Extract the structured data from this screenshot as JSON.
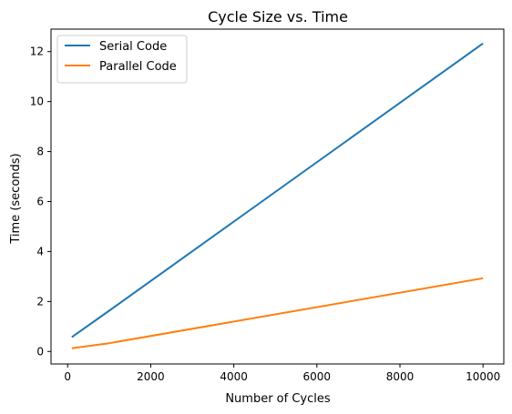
{
  "chart_data": {
    "type": "line",
    "title": "Cycle Size vs. Time",
    "xlabel": "Number of Cycles",
    "ylabel": "Time (seconds)",
    "xlim": [
      -400,
      10500
    ],
    "ylim": [
      -0.5,
      12.9
    ],
    "x_ticks": [
      0,
      2000,
      4000,
      6000,
      8000,
      10000
    ],
    "y_ticks": [
      0,
      2,
      4,
      6,
      8,
      10,
      12
    ],
    "grid": false,
    "legend_position": "top-left",
    "series": [
      {
        "name": "Serial Code",
        "color": "#1f77b4",
        "x": [
          100,
          1000,
          10000
        ],
        "y": [
          0.57,
          1.63,
          12.33
        ]
      },
      {
        "name": "Parallel Code",
        "color": "#ff7f0e",
        "x": [
          100,
          1000,
          10000
        ],
        "y": [
          0.13,
          0.33,
          2.93
        ]
      }
    ]
  }
}
